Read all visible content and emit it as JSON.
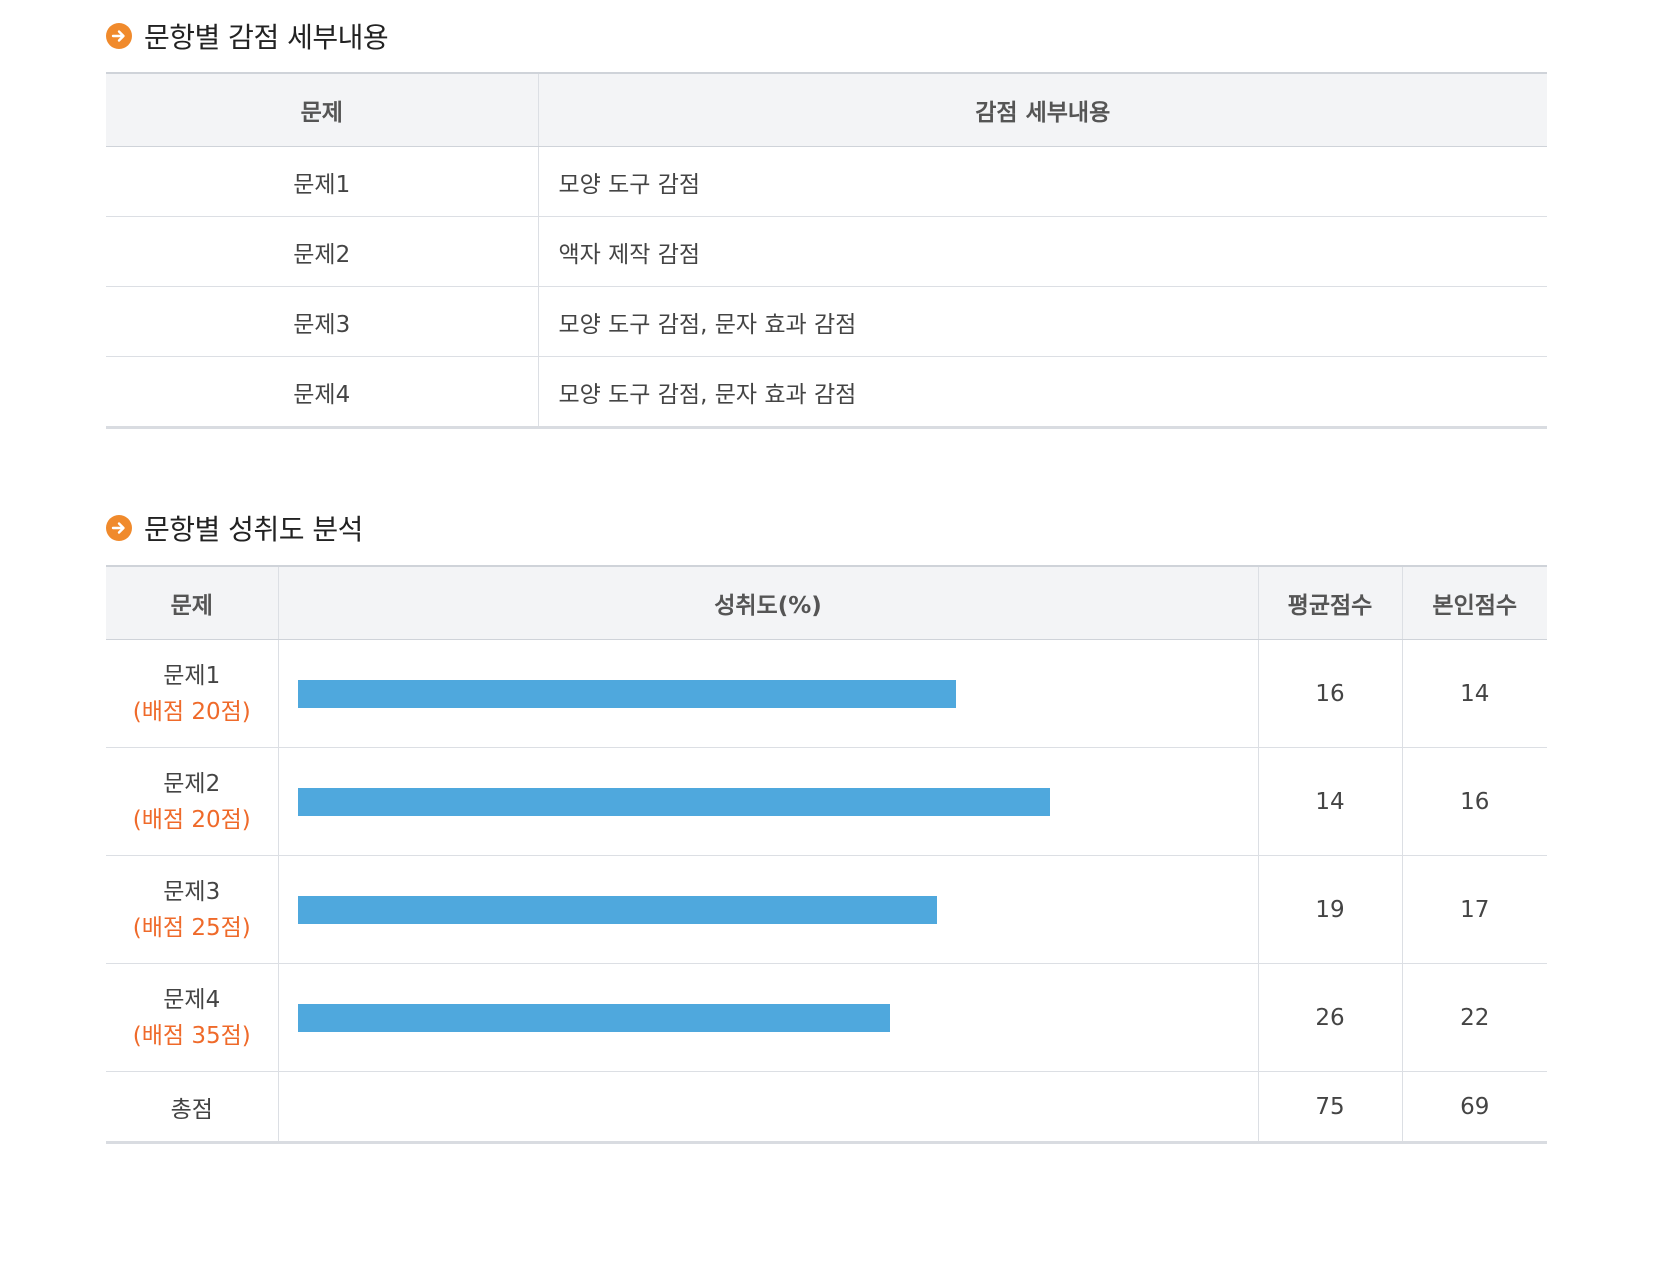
{
  "deduction_section": {
    "title": "문항별 감점 세부내용",
    "headers": {
      "problem": "문제",
      "detail": "감점 세부내용"
    },
    "rows": [
      {
        "problem": "문제1",
        "detail": "모양 도구 감점"
      },
      {
        "problem": "문제2",
        "detail": "액자 제작 감점"
      },
      {
        "problem": "문제3",
        "detail": "모양 도구 감점, 문자 효과 감점"
      },
      {
        "problem": "문제4",
        "detail": "모양 도구 감점, 문자 효과 감점"
      }
    ]
  },
  "achievement_section": {
    "title": "문항별 성취도 분석",
    "headers": {
      "problem": "문제",
      "achievement": "성취도(%)",
      "average": "평균점수",
      "mine": "본인점수"
    },
    "rows": [
      {
        "problem": "문제1",
        "points": "(배점 20점)",
        "achievement": 70,
        "average": "16",
        "mine": "14"
      },
      {
        "problem": "문제2",
        "points": "(배점 20점)",
        "achievement": 80,
        "average": "14",
        "mine": "16"
      },
      {
        "problem": "문제3",
        "points": "(배점 25점)",
        "achievement": 68,
        "average": "19",
        "mine": "17"
      },
      {
        "problem": "문제4",
        "points": "(배점 35점)",
        "achievement": 63,
        "average": "26",
        "mine": "22"
      }
    ],
    "total": {
      "label": "총점",
      "average": "75",
      "mine": "69"
    }
  },
  "colors": {
    "bar": "#4fa8dd",
    "points_text": "#ef6a2a",
    "title_icon": "#f08a2c"
  },
  "icons": {
    "section_title": "orange-arrow-circle-icon"
  }
}
